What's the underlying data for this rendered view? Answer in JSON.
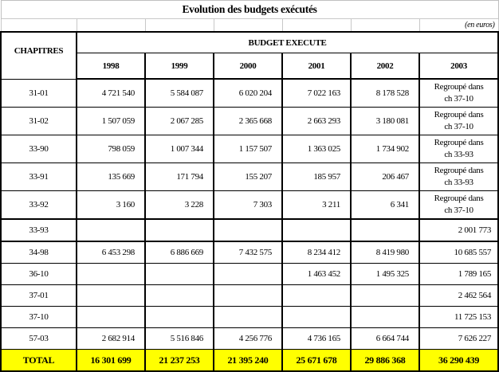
{
  "title": "Evolution des budgets exécutés",
  "unit": "(en euros)",
  "header": {
    "chapitres": "CHAPITRES",
    "budget": "BUDGET EXECUTE",
    "years": [
      "1998",
      "1999",
      "2000",
      "2001",
      "2002",
      "2003"
    ]
  },
  "rows": [
    {
      "code": "31-01",
      "values": [
        "4 721 540",
        "5 584 087",
        "6 020 204",
        "7 022 163",
        "8 178 528"
      ],
      "note": [
        "Regroupé dans",
        "ch 37-10"
      ]
    },
    {
      "code": "31-02",
      "values": [
        "1 507 059",
        "2 067 285",
        "2 365 668",
        "2 663 293",
        "3 180 081"
      ],
      "note": [
        "Regroupé dans",
        "ch 37-10"
      ]
    },
    {
      "code": "33-90",
      "values": [
        "798 059",
        "1 007 344",
        "1 157 507",
        "1 363 025",
        "1 734 902"
      ],
      "note": [
        "Regroupé dans",
        "ch 33-93"
      ]
    },
    {
      "code": "33-91",
      "values": [
        "135 669",
        "171 794",
        "155 207",
        "185 957",
        "206 467"
      ],
      "note": [
        "Regroupé dans",
        "ch 33-93"
      ]
    },
    {
      "code": "33-92",
      "values": [
        "3 160",
        "3 228",
        "7 303",
        "3 211",
        "6 341"
      ],
      "note": [
        "Regroupé dans",
        "ch 37-10"
      ]
    }
  ],
  "rows2": [
    {
      "code": "33-93",
      "values": [
        "",
        "",
        "",
        "",
        "",
        "2 001 773"
      ]
    },
    {
      "code": "34-98",
      "values": [
        "6 453 298",
        "6 886 669",
        "7 432 575",
        "8 234 412",
        "8 419 980",
        "10 685 557"
      ]
    },
    {
      "code": "36-10",
      "values": [
        "",
        "",
        "",
        "1 463 452",
        "1 495 325",
        "1 789 165"
      ]
    },
    {
      "code": "37-01",
      "values": [
        "",
        "",
        "",
        "",
        "",
        "2 462 564"
      ]
    },
    {
      "code": "37-10",
      "values": [
        "",
        "",
        "",
        "",
        "",
        "11 725 153"
      ]
    },
    {
      "code": "57-03",
      "values": [
        "2 682 914",
        "5 516 846",
        "4 256 776",
        "4 736 165",
        "6 664 744",
        "7 626 227"
      ]
    }
  ],
  "total": {
    "label": "TOTAL",
    "values": [
      "16 301 699",
      "21 237 253",
      "21 395 240",
      "25 671 678",
      "29 886 368",
      "36 290 439"
    ]
  },
  "colors": {
    "total_bg": "#ffff00"
  }
}
